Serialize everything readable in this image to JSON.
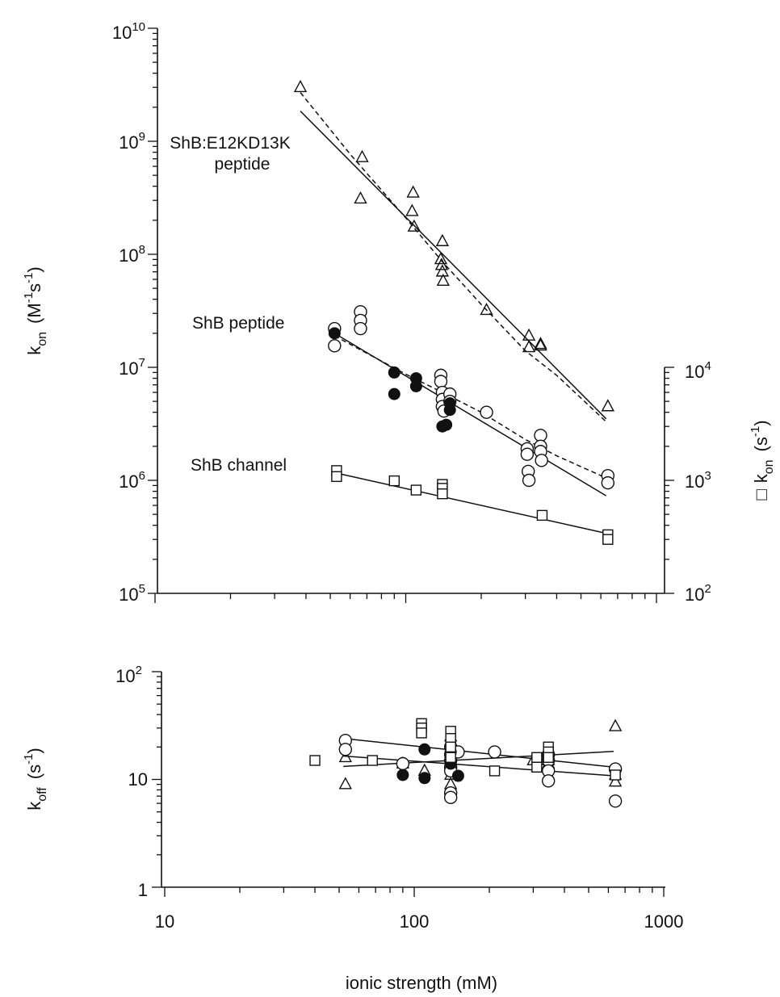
{
  "chart_data": [
    {
      "panel": "top",
      "type": "scatter",
      "xscale": "log",
      "yscale": "log",
      "xlim": [
        10,
        1000
      ],
      "ylim": [
        100000,
        10000000000
      ],
      "y_ticks": [
        {
          "value": 100000,
          "base": "10",
          "exp": "5"
        },
        {
          "value": 1000000,
          "base": "10",
          "exp": "6"
        },
        {
          "value": 10000000,
          "base": "10",
          "exp": "7"
        },
        {
          "value": 100000000,
          "base": "10",
          "exp": "8"
        },
        {
          "value": 1000000000,
          "base": "10",
          "exp": "9"
        },
        {
          "value": 10000000000,
          "base": "10",
          "exp": "10"
        }
      ],
      "ylabel": {
        "main": "k",
        "sub": "on",
        "units": "(M",
        "exp1": "-1",
        "mid": "s",
        "exp2": "-1",
        "close": ")"
      },
      "y2": {
        "ylim": [
          100,
          10000
        ],
        "ticks": [
          {
            "value": 100,
            "base": "10",
            "exp": "2"
          },
          {
            "value": 1000,
            "base": "10",
            "exp": "3"
          },
          {
            "value": 10000,
            "base": "10",
            "exp": "4"
          }
        ],
        "label": {
          "symbol": "□",
          "main": "k",
          "sub": "on",
          "units": "(s",
          "exp": "-1",
          "close": ")"
        }
      },
      "annotations": {
        "peptide_mut_line1": "ShB:E12KD13K",
        "peptide_mut_line2": "peptide",
        "peptide": "ShB peptide",
        "channel": "ShB channel"
      },
      "series": [
        {
          "marker": "triangle-open",
          "axis": "left",
          "x": [
            38,
            67,
            66,
            107,
            106,
            108,
            140,
            138,
            139,
            140,
            141,
            210,
            310,
            310,
            345,
            345,
            640
          ],
          "y": [
            3000000000.0,
            720000000.0,
            310000000.0,
            350000000.0,
            240000000.0,
            175000000.0,
            130000000.0,
            90000000.0,
            80000000.0,
            70000000.0,
            58000000.0,
            32000000.0,
            19000000.0,
            15000000.0,
            16000000.0,
            15500000.0,
            4500000.0
          ]
        },
        {
          "marker": "circle-open",
          "axis": "left",
          "x": [
            52,
            52,
            66,
            66,
            66,
            138,
            138,
            140,
            140,
            140,
            142,
            150,
            150,
            210,
            305,
            305,
            308,
            310,
            345,
            345,
            345,
            348,
            640,
            640
          ],
          "y": [
            22000000.0,
            15500000.0,
            31000000.0,
            26000000.0,
            22000000.0,
            8500000.0,
            7500000.0,
            6000000.0,
            5200000.0,
            4500000.0,
            4100000.0,
            5800000.0,
            5000000.0,
            4000000.0,
            1900000.0,
            1700000.0,
            1200000.0,
            1000000.0,
            2500000.0,
            2000000.0,
            1800000.0,
            1500000.0,
            1100000.0,
            950000.0
          ]
        },
        {
          "marker": "circle-filled",
          "axis": "left",
          "x": [
            52,
            90,
            90,
            110,
            110,
            140,
            145,
            150,
            150
          ],
          "y": [
            20000000.0,
            9000000.0,
            5800000.0,
            8000000.0,
            6800000.0,
            3000000.0,
            3100000.0,
            4800000.0,
            4200000.0
          ]
        },
        {
          "marker": "square-open",
          "axis": "right",
          "x": [
            53,
            53,
            90,
            110,
            140,
            140,
            140,
            350,
            640,
            640
          ],
          "y": [
            1220,
            1080,
            990,
            820,
            920,
            850,
            760,
            490,
            330,
            300
          ]
        }
      ],
      "fits": [
        {
          "style": "solid",
          "axis": "left",
          "x": [
            38,
            630
          ],
          "y": [
            1850000000.0,
            3500000.0
          ]
        },
        {
          "style": "dashed",
          "axis": "left",
          "x": [
            38,
            60,
            100,
            140,
            200,
            300,
            400,
            630
          ],
          "y": [
            2700000000.0,
            770000000.0,
            210000000.0,
            86000000.0,
            36000000.0,
            14000000.0,
            8500000.0,
            3300000.0
          ]
        },
        {
          "style": "solid",
          "axis": "left",
          "x": [
            52,
            630
          ],
          "y": [
            20000000.0,
            730000.0
          ]
        },
        {
          "style": "dashed",
          "axis": "left",
          "x": [
            52,
            100,
            140,
            200,
            300,
            400,
            630
          ],
          "y": [
            19000000.0,
            8700000.0,
            6000000.0,
            4000000.0,
            2300000.0,
            1650000.0,
            1050000.0
          ]
        },
        {
          "style": "solid",
          "axis": "right",
          "x": [
            52,
            630
          ],
          "y": [
            1170,
            340
          ]
        }
      ]
    },
    {
      "panel": "bottom",
      "type": "scatter",
      "xscale": "log",
      "yscale": "log",
      "xlim": [
        10,
        1000
      ],
      "ylim": [
        1,
        100
      ],
      "x_ticks": [
        "10",
        "100",
        "1000"
      ],
      "y_ticks": [
        {
          "value": 1,
          "base": "1",
          "exp": ""
        },
        {
          "value": 10,
          "base": "10",
          "exp": ""
        },
        {
          "value": 100,
          "base": "10",
          "exp": "2"
        }
      ],
      "xlabel": "ionic strength (mM)",
      "ylabel": {
        "main": "k",
        "sub": "off",
        "units": "(s",
        "exp": "-1",
        "close": ")"
      },
      "series": [
        {
          "marker": "triangle-open",
          "x": [
            53,
            53,
            90,
            110,
            140,
            140,
            140,
            140,
            140,
            140,
            300,
            345,
            345,
            345,
            640,
            640,
            640
          ],
          "y": [
            16,
            9,
            14,
            12,
            25,
            21,
            17,
            14,
            11,
            9,
            15,
            13,
            14,
            15,
            31,
            11,
            9.5
          ]
        },
        {
          "marker": "circle-open",
          "x": [
            53,
            53,
            90,
            140,
            140,
            140,
            140,
            140,
            140,
            140,
            150,
            210,
            345,
            345,
            345,
            345,
            640,
            640
          ],
          "y": [
            23,
            19,
            14,
            20,
            17,
            15,
            13,
            12,
            7.5,
            6.8,
            18,
            18,
            17,
            15,
            12,
            9.7,
            12.5,
            6.3
          ]
        },
        {
          "marker": "circle-filled",
          "x": [
            90,
            110,
            110,
            140,
            140,
            150
          ],
          "y": [
            11,
            19,
            10.3,
            18,
            14,
            10.8
          ]
        },
        {
          "marker": "square-open",
          "x": [
            40,
            68,
            107,
            107,
            107,
            140,
            140,
            140,
            140,
            210,
            310,
            310,
            345,
            345,
            345,
            640
          ],
          "y": [
            15,
            15,
            33,
            30,
            27,
            28,
            24,
            20,
            16,
            12,
            16,
            13,
            20,
            18,
            16,
            11
          ]
        }
      ],
      "fits": [
        {
          "style": "solid",
          "x": [
            52,
            630
          ],
          "y": [
            24,
            13
          ]
        },
        {
          "style": "solid",
          "x": [
            52,
            630
          ],
          "y": [
            13.2,
            18.2
          ]
        },
        {
          "style": "solid",
          "x": [
            52,
            630
          ],
          "y": [
            16.5,
            10.8
          ]
        }
      ]
    }
  ]
}
